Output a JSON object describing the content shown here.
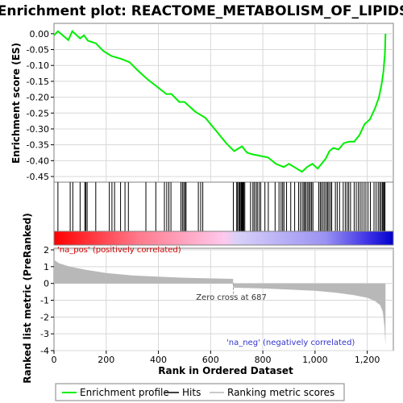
{
  "chart_data": {
    "type": "line",
    "title": "Enrichment plot: REACTOME_METABOLISM_OF_LIPIDS",
    "colors": {
      "enrichment_line": "#00ee00",
      "hit": "#000000",
      "metric_fill": "#b8b8b8",
      "grid": "#d8d8d8",
      "pos_label": "#cc0000",
      "neg_label": "#3333cc",
      "zero_cross_line": "#999999"
    },
    "es_panel": {
      "ylabel": "Enrichment score (ES)",
      "ylim": [
        -0.45,
        0.025
      ],
      "yticks": [
        0.0,
        -0.05,
        -0.1,
        -0.15,
        -0.2,
        -0.25,
        -0.3,
        -0.35,
        -0.4,
        -0.45
      ],
      "ytick_labels": [
        "0.00",
        "-0.05",
        "-0.10",
        "-0.15",
        "-0.20",
        "-0.25",
        "-0.30",
        "-0.35",
        "-0.40",
        "-0.45"
      ],
      "grid": true,
      "profile": {
        "x": [
          0,
          15,
          55,
          70,
          100,
          115,
          130,
          160,
          190,
          220,
          260,
          290,
          320,
          360,
          400,
          430,
          450,
          480,
          500,
          540,
          580,
          620,
          660,
          690,
          710,
          720,
          740,
          760,
          790,
          820,
          850,
          880,
          900,
          930,
          950,
          970,
          990,
          1010,
          1040,
          1055,
          1070,
          1090,
          1110,
          1130,
          1150,
          1170,
          1190,
          1210,
          1230,
          1245,
          1255,
          1262,
          1268,
          1270
        ],
        "y": [
          -0.005,
          0.008,
          -0.02,
          0.008,
          -0.015,
          -0.005,
          -0.022,
          -0.03,
          -0.055,
          -0.07,
          -0.08,
          -0.09,
          -0.115,
          -0.145,
          -0.17,
          -0.19,
          -0.19,
          -0.215,
          -0.215,
          -0.245,
          -0.265,
          -0.305,
          -0.345,
          -0.37,
          -0.36,
          -0.355,
          -0.375,
          -0.38,
          -0.385,
          -0.39,
          -0.41,
          -0.42,
          -0.41,
          -0.425,
          -0.435,
          -0.42,
          -0.41,
          -0.425,
          -0.395,
          -0.37,
          -0.36,
          -0.365,
          -0.345,
          -0.34,
          -0.34,
          -0.32,
          -0.285,
          -0.27,
          -0.235,
          -0.2,
          -0.16,
          -0.12,
          -0.06,
          0.0
        ]
      }
    },
    "hits": [
      15,
      62,
      72,
      100,
      118,
      122,
      127,
      160,
      212,
      222,
      232,
      255,
      272,
      285,
      352,
      390,
      423,
      432,
      440,
      448,
      486,
      492,
      497,
      502,
      506,
      553,
      562,
      570,
      687,
      700,
      703,
      708,
      711,
      714,
      718,
      721,
      724,
      727,
      731,
      753,
      762,
      767,
      774,
      779,
      786,
      792,
      808,
      821,
      847,
      862,
      870,
      876,
      881,
      891,
      907,
      922,
      937,
      944,
      951,
      957,
      961,
      966,
      972,
      977,
      982,
      987,
      992,
      1014,
      1020,
      1025,
      1031,
      1037,
      1043,
      1048,
      1053,
      1059,
      1064,
      1078,
      1085,
      1094,
      1108,
      1116,
      1123,
      1129,
      1136,
      1150,
      1158,
      1166,
      1173,
      1180,
      1188,
      1195,
      1203,
      1212,
      1226,
      1234,
      1242,
      1248,
      1253,
      1258,
      1262,
      1265,
      1268
    ],
    "metric_panel": {
      "ylabel": "Ranked list metric (PreRanked)",
      "xlabel": "Rank in Ordered Dataset",
      "ylim": [
        -4,
        2
      ],
      "yticks": [
        2,
        1,
        0,
        -1,
        -2,
        -3,
        -4
      ],
      "ytick_labels": [
        "2",
        "1",
        "0",
        "-1",
        "-2",
        "-3",
        "-4"
      ],
      "xlim": [
        0,
        1300
      ],
      "xticks": [
        0,
        200,
        400,
        600,
        800,
        1000,
        1200
      ],
      "xtick_labels": [
        "0",
        "200",
        "400",
        "600",
        "800",
        "1,000",
        "1,200"
      ],
      "zero_cross": 687,
      "metric_curve": {
        "x": [
          0,
          20,
          60,
          120,
          200,
          300,
          400,
          500,
          600,
          686,
          687,
          800,
          900,
          1000,
          1080,
          1150,
          1200,
          1230,
          1250,
          1260,
          1266,
          1270
        ],
        "y": [
          1.4,
          1.2,
          1.0,
          0.82,
          0.62,
          0.48,
          0.4,
          0.34,
          0.3,
          0.27,
          -0.25,
          -0.3,
          -0.36,
          -0.44,
          -0.55,
          -0.7,
          -0.85,
          -1.05,
          -1.3,
          -1.7,
          -2.6,
          -3.7
        ]
      },
      "pos_label": "'na_pos' (positively correlated)",
      "neg_label": "'na_neg' (negatively correlated)",
      "zero_cross_label": "Zero cross at 687"
    },
    "legend": {
      "placement": "bottom",
      "items": [
        {
          "label": "Enrichment profile",
          "color": "#00ee00"
        },
        {
          "label": "Hits",
          "color": "#000000"
        },
        {
          "label": "Ranking metric scores",
          "color": "#b8b8b8"
        }
      ]
    }
  }
}
